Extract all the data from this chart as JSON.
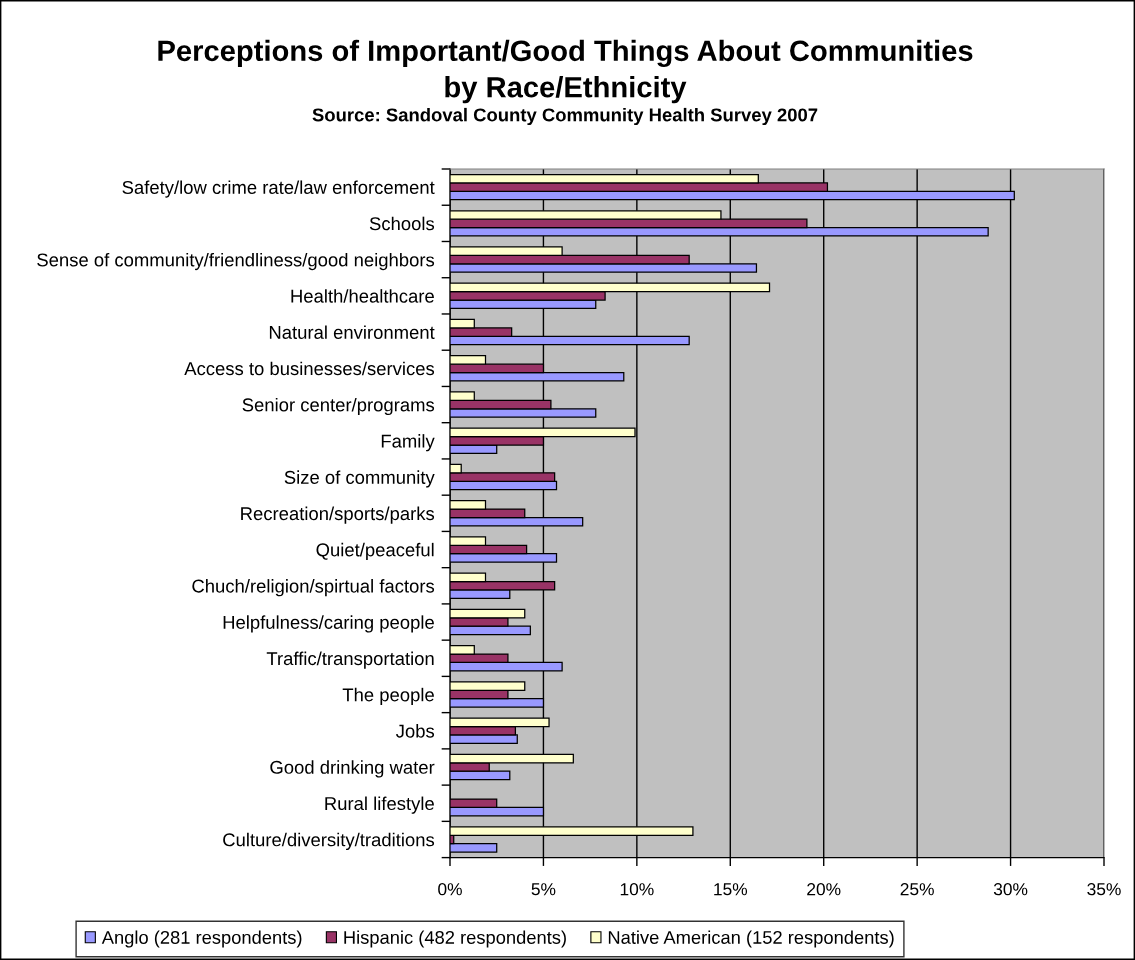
{
  "chart_data": {
    "type": "bar",
    "orientation": "horizontal",
    "title": "Perceptions of Important/Good Things About Communities\nby Race/Ethnicity",
    "annotations": [
      "Source: Sandoval County Community Health Survey 2007"
    ],
    "categories": [
      "Safety/low crime rate/law enforcement",
      "Schools",
      "Sense of community/friendliness/good neighbors",
      "Health/healthcare",
      "Natural environment",
      "Access to businesses/services",
      "Senior center/programs",
      "Family",
      "Size of community",
      "Recreation/sports/parks",
      "Quiet/peaceful",
      "Chuch/religion/spirtual factors",
      "Helpfulness/caring people",
      "Traffic/transportation",
      "The people",
      "Jobs",
      "Good drinking water",
      "Rural lifestyle",
      "Culture/diversity/traditions"
    ],
    "series": [
      {
        "name": "Anglo (281 respondents)",
        "color": "#9999ff",
        "values": [
          30.2,
          28.8,
          16.4,
          7.8,
          12.8,
          9.3,
          7.8,
          2.5,
          5.7,
          7.1,
          5.7,
          3.2,
          4.3,
          6.0,
          5.0,
          3.6,
          3.2,
          5.0,
          2.5
        ]
      },
      {
        "name": "Hispanic (482 respondents)",
        "color": "#993366",
        "values": [
          20.2,
          19.1,
          12.8,
          8.3,
          3.3,
          5.0,
          5.4,
          5.0,
          5.6,
          4.0,
          4.1,
          5.6,
          3.1,
          3.1,
          3.1,
          3.5,
          2.1,
          2.5,
          0.2
        ]
      },
      {
        "name": "Native American (152 respondents)",
        "color": "#ffffcc",
        "values": [
          16.5,
          14.5,
          6.0,
          17.1,
          1.3,
          1.9,
          1.3,
          9.9,
          0.6,
          1.9,
          1.9,
          1.9,
          4.0,
          1.3,
          4.0,
          5.3,
          6.6,
          null,
          13.0
        ]
      }
    ],
    "xlim": [
      0,
      35
    ],
    "xticks": [
      {
        "value": 0,
        "label": "0%"
      },
      {
        "value": 5,
        "label": "5%"
      },
      {
        "value": 10,
        "label": "10%"
      },
      {
        "value": 15,
        "label": "15%"
      },
      {
        "value": 20,
        "label": "20%"
      },
      {
        "value": 25,
        "label": "25%"
      },
      {
        "value": 30,
        "label": "30%"
      },
      {
        "value": 35,
        "label": "35%"
      }
    ],
    "grid": "x",
    "legend": "bottom"
  }
}
